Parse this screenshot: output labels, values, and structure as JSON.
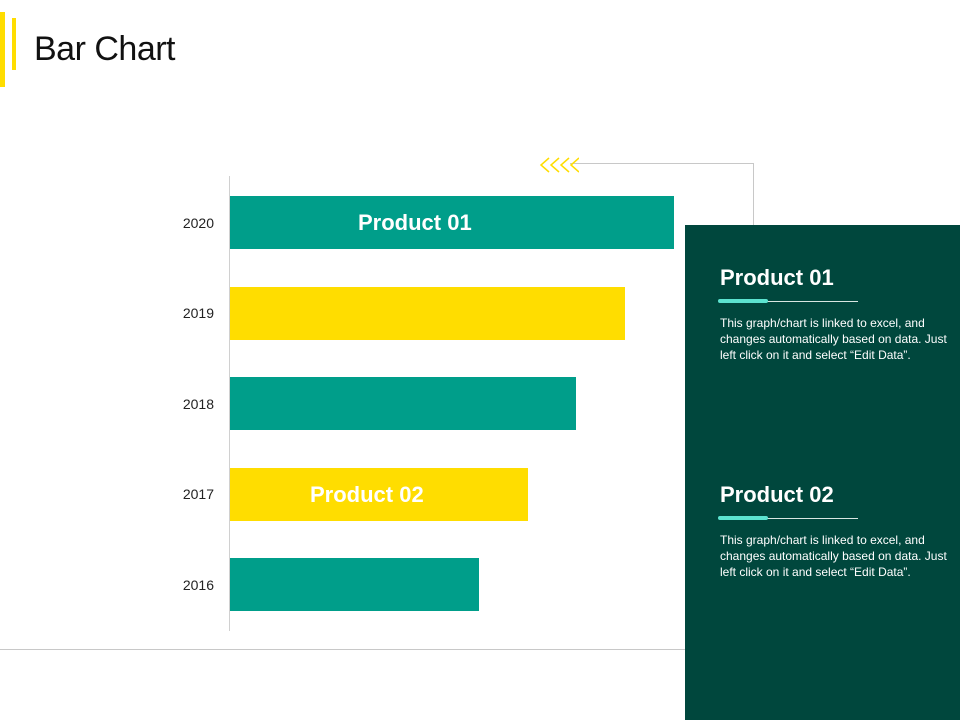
{
  "title": "Bar Chart",
  "colors": {
    "teal": "#009E8A",
    "yellow": "#FFDD00",
    "panel": "#00473D",
    "accent": "#5CE3D0"
  },
  "icons": {
    "chevrons": "chevron-left-triple-icon"
  },
  "chart_data": {
    "type": "bar",
    "orientation": "horizontal",
    "categories": [
      "2020",
      "2019",
      "2018",
      "2017",
      "2016"
    ],
    "values": [
      91,
      81,
      71,
      61,
      51
    ],
    "xlim": [
      0,
      100
    ],
    "grid": false,
    "bar_colors": [
      "#009E8A",
      "#FFDD00",
      "#009E8A",
      "#FFDD00",
      "#009E8A"
    ],
    "annotations": [
      {
        "category": "2020",
        "text": "Product 01"
      },
      {
        "category": "2017",
        "text": "Product 02"
      }
    ]
  },
  "panel": {
    "items": [
      {
        "title": "Product 01",
        "body": "This graph/chart is linked to excel, and changes automatically based on data. Just left click on it and select “Edit Data”."
      },
      {
        "title": "Product 02",
        "body": "This graph/chart is linked to excel, and changes automatically based on data. Just left click on it and select “Edit Data”."
      }
    ]
  }
}
